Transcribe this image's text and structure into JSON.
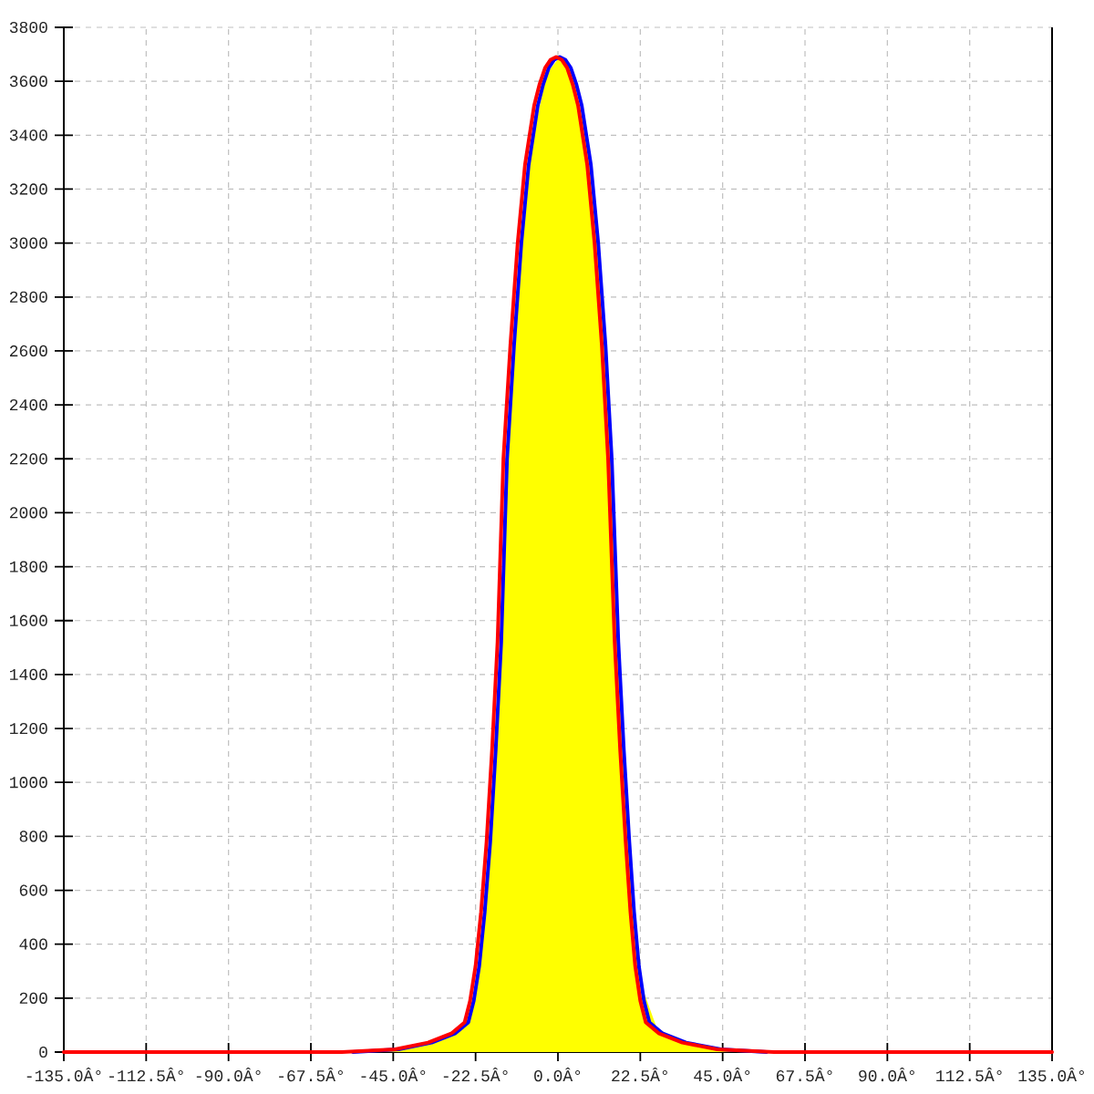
{
  "chart_data": {
    "type": "area",
    "xlim": [
      -135,
      135
    ],
    "xticks": [
      {
        "value": -135,
        "label": "-135.0Â°"
      },
      {
        "value": -112.5,
        "label": "-112.5Â°"
      },
      {
        "value": -90,
        "label": "-90.0Â°"
      },
      {
        "value": -67.5,
        "label": "-67.5Â°"
      },
      {
        "value": -45,
        "label": "-45.0Â°"
      },
      {
        "value": -22.5,
        "label": "-22.5Â°"
      },
      {
        "value": 0,
        "label": "0.0Â°"
      },
      {
        "value": 22.5,
        "label": "22.5Â°"
      },
      {
        "value": 45,
        "label": "45.0Â°"
      },
      {
        "value": 67.5,
        "label": "67.5Â°"
      },
      {
        "value": 90,
        "label": "90.0Â°"
      },
      {
        "value": 112.5,
        "label": "112.5Â°"
      },
      {
        "value": 135,
        "label": "135.0Â°"
      }
    ],
    "ylim": [
      0,
      3800
    ],
    "yticks": [
      0,
      200,
      400,
      600,
      800,
      1000,
      1200,
      1400,
      1600,
      1800,
      2000,
      2200,
      2400,
      2600,
      2800,
      3000,
      3200,
      3400,
      3600,
      3800
    ],
    "grid": true,
    "series": [
      {
        "type": "line",
        "color": "#0000ff",
        "x": [
          -56,
          -43.5,
          -34.5,
          -28,
          -24.5,
          -23,
          -21.5,
          -20,
          -18.5,
          -17,
          -15.5,
          -13.9,
          -12,
          -10,
          -8,
          -5.5,
          -4,
          -2.5,
          -1,
          0.5,
          2,
          3.5,
          5,
          6.5,
          9,
          11,
          13,
          14.7,
          16.5,
          18,
          19.5,
          20.8,
          22.1,
          23.5,
          25,
          28.5,
          35,
          44.5,
          57
        ],
        "values": [
          0,
          10,
          35,
          70,
          110,
          190,
          320,
          520,
          780,
          1120,
          1520,
          2200,
          2620,
          3000,
          3290,
          3510,
          3590,
          3650,
          3680,
          3690,
          3680,
          3650,
          3590,
          3510,
          3290,
          3000,
          2620,
          2200,
          1520,
          1120,
          780,
          520,
          320,
          190,
          110,
          70,
          35,
          10,
          0
        ]
      },
      {
        "type": "line",
        "color": "#ff0000",
        "x": [
          -135,
          -59,
          -44.5,
          -35.5,
          -29,
          -25.5,
          -24,
          -22.5,
          -21,
          -19.5,
          -18,
          -16.5,
          -14.9,
          -13,
          -11,
          -9,
          -6.5,
          -5,
          -3.5,
          -2,
          -0.5,
          1,
          2.5,
          4,
          5.5,
          8,
          10,
          12,
          13.7,
          15.5,
          17,
          18.5,
          19.8,
          21.1,
          22.5,
          24,
          27.5,
          34,
          43.5,
          59,
          135
        ],
        "values": [
          0,
          0,
          10,
          35,
          70,
          110,
          190,
          320,
          520,
          780,
          1120,
          1520,
          2200,
          2620,
          3000,
          3290,
          3510,
          3590,
          3650,
          3680,
          3690,
          3680,
          3650,
          3590,
          3510,
          3290,
          3000,
          2620,
          2200,
          1520,
          1120,
          780,
          520,
          320,
          190,
          110,
          70,
          35,
          10,
          0,
          0
        ]
      },
      {
        "color": "#ffff00",
        "x": [
          -50,
          -40,
          -32,
          -26,
          -22.5,
          -19,
          -16,
          -14.5,
          -11,
          -7,
          -3,
          0.5,
          4,
          8,
          12,
          15.5,
          17,
          20,
          23,
          27,
          33,
          40,
          50
        ],
        "values": [
          5,
          20,
          50,
          90,
          230,
          690,
          1390,
          1950,
          2810,
          3380,
          3630,
          3690,
          3630,
          3380,
          2810,
          1900,
          1390,
          680,
          240,
          90,
          45,
          20,
          5
        ]
      }
    ]
  }
}
